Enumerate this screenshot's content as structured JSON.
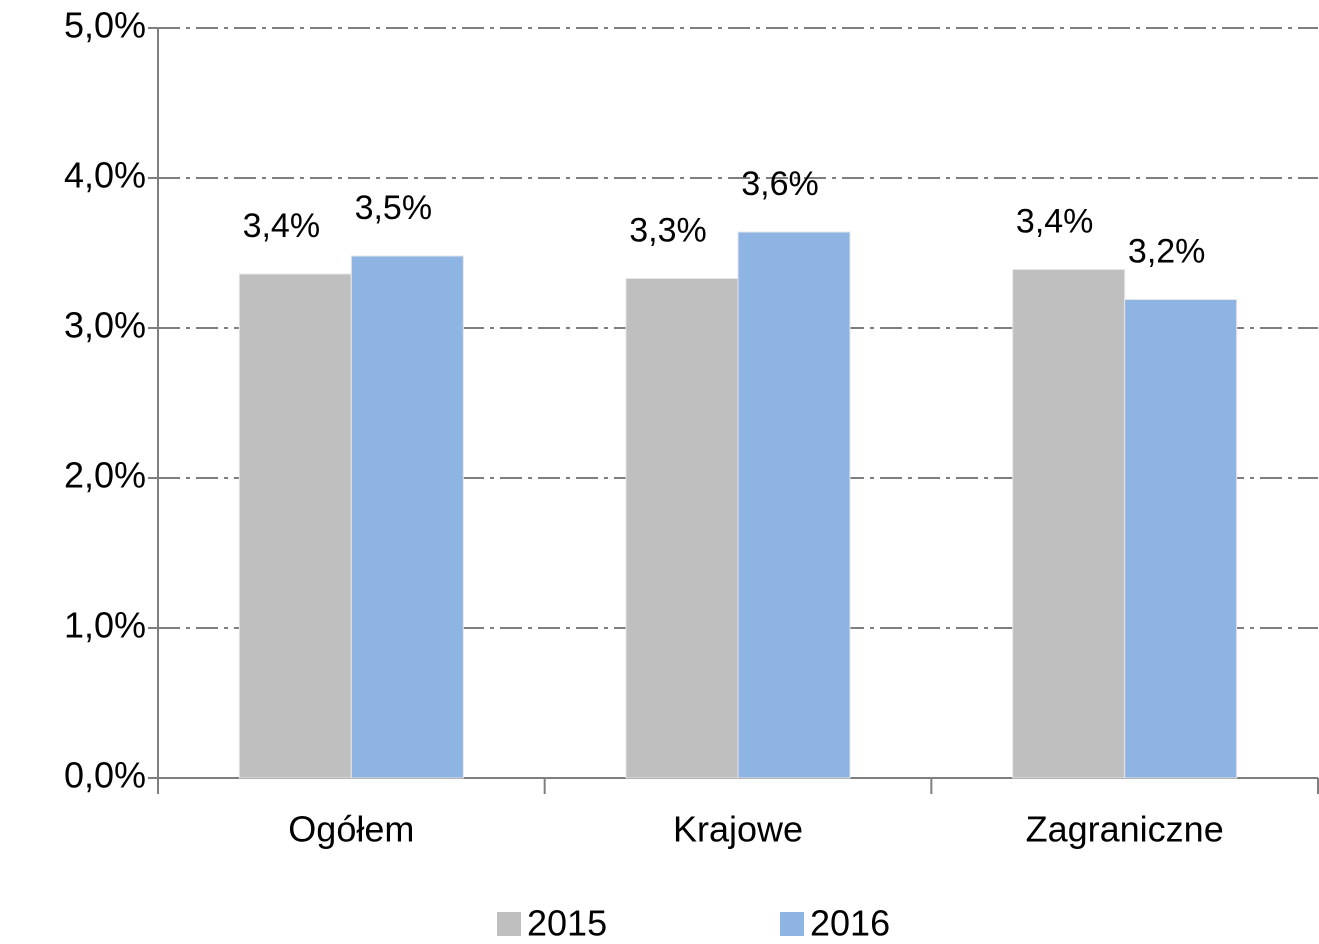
{
  "chart_data": {
    "type": "bar",
    "categories": [
      "Ogółem",
      "Krajowe",
      "Zagraniczne"
    ],
    "series": [
      {
        "name": "2015",
        "color": "#bfbfbf",
        "values": [
          3.36,
          3.33,
          3.39
        ],
        "value_labels": [
          "3,4%",
          "3,3%",
          "3,4%"
        ]
      },
      {
        "name": "2016",
        "color": "#8eb4e3",
        "values": [
          3.48,
          3.64,
          3.19
        ],
        "value_labels": [
          "3,5%",
          "3,6%",
          "3,2%"
        ]
      }
    ],
    "ylim": [
      0,
      5
    ],
    "yticks": [
      {
        "value": 0,
        "label": "0,0%"
      },
      {
        "value": 1,
        "label": "1,0%"
      },
      {
        "value": 2,
        "label": "2,0%"
      },
      {
        "value": 3,
        "label": "3,0%"
      },
      {
        "value": 4,
        "label": "4,0%"
      },
      {
        "value": 5,
        "label": "5,0%"
      }
    ],
    "grid": true,
    "legend": "bottom"
  }
}
